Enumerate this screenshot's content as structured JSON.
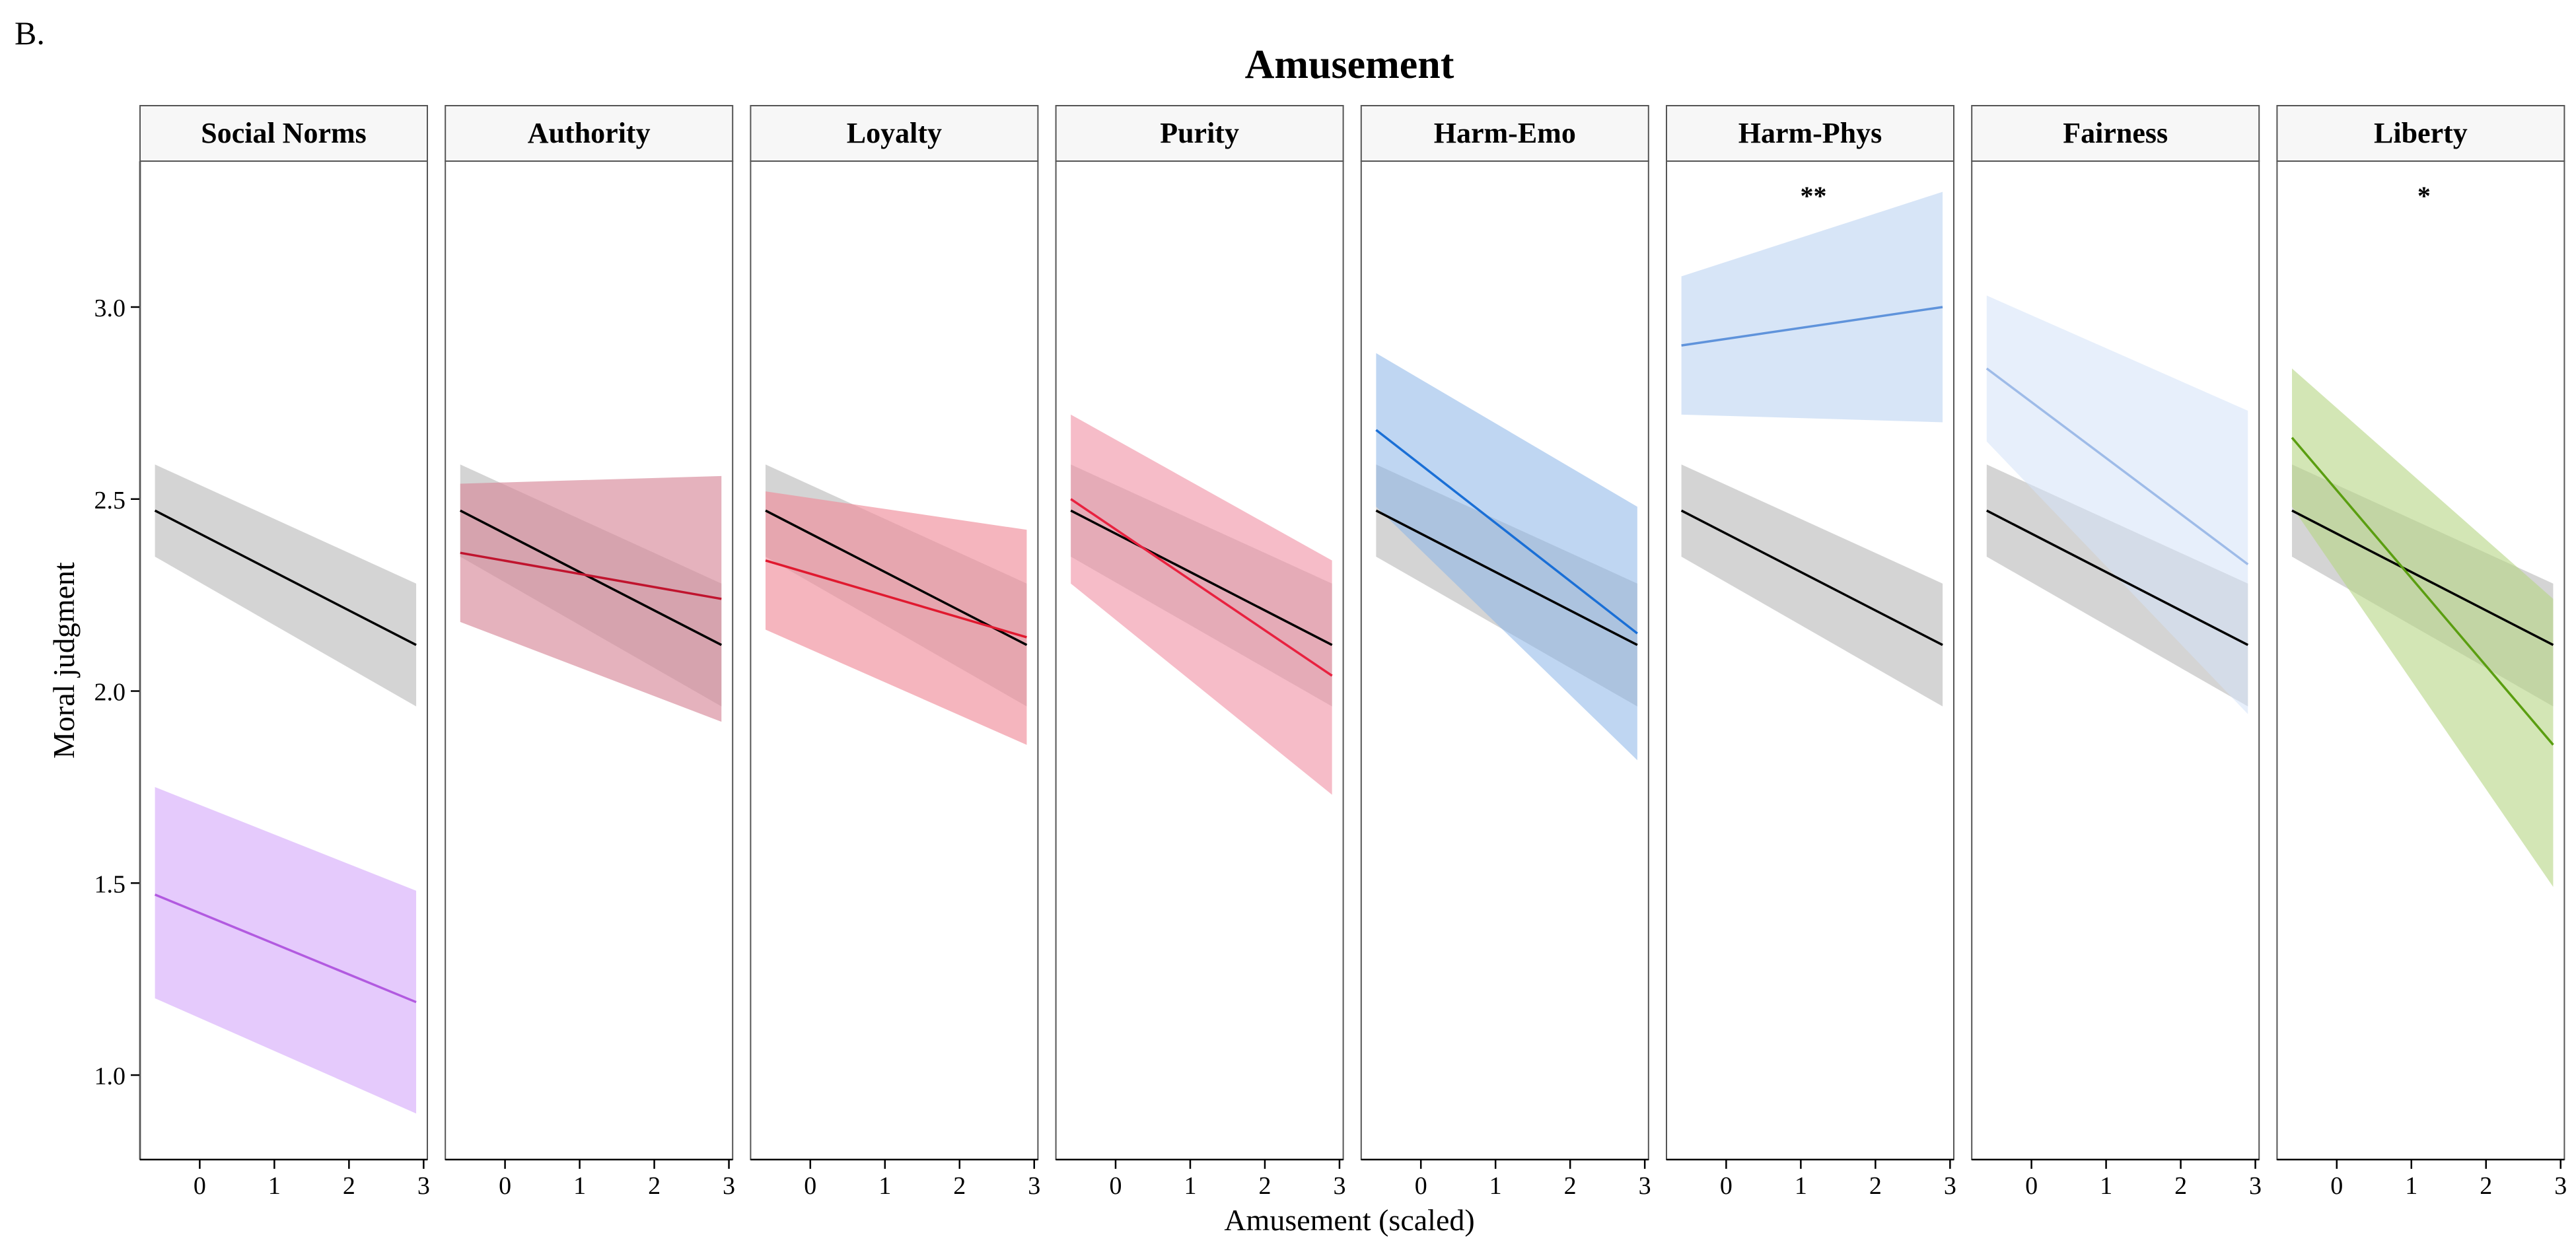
{
  "figure_label": "B.",
  "chart_data": {
    "type": "line",
    "title": "Amusement",
    "xlabel": "Amusement (scaled)",
    "ylabel": "Moral judgment",
    "xlim": [
      -0.8,
      3.05
    ],
    "ylim": [
      0.78,
      3.38
    ],
    "x_ticks": [
      0,
      1,
      2,
      3
    ],
    "y_ticks": [
      1.0,
      1.5,
      2.0,
      2.5,
      3.0
    ],
    "y_tick_labels": [
      "1.0",
      "1.5",
      "2.0",
      "2.5",
      "3.0"
    ],
    "x_range": [
      -0.6,
      2.9
    ],
    "baseline": {
      "color": "#000000",
      "band_color": "#bdbdbd",
      "line": [
        2.47,
        2.12
      ],
      "lower": [
        2.35,
        1.96
      ],
      "upper": [
        2.59,
        2.28
      ]
    },
    "panels": [
      {
        "name": "Social Norms",
        "annotation": "",
        "color": "#b25ae0",
        "band_color": "#dcb8fb",
        "line": [
          1.47,
          1.19
        ],
        "lower": [
          1.2,
          0.9
        ],
        "upper": [
          1.75,
          1.48
        ],
        "band_opacity": 0.75
      },
      {
        "name": "Authority",
        "annotation": "",
        "color": "#c0142e",
        "band_color": "#d7889a",
        "line": [
          2.36,
          2.24
        ],
        "lower": [
          2.18,
          1.92
        ],
        "upper": [
          2.54,
          2.56
        ],
        "band_opacity": 0.65
      },
      {
        "name": "Loyalty",
        "annotation": "",
        "color": "#e0192f",
        "band_color": "#ef8d9b",
        "line": [
          2.34,
          2.14
        ],
        "lower": [
          2.16,
          1.86
        ],
        "upper": [
          2.52,
          2.42
        ],
        "band_opacity": 0.65
      },
      {
        "name": "Purity",
        "annotation": "",
        "color": "#e8213f",
        "band_color": "#f08fa3",
        "line": [
          2.5,
          2.04
        ],
        "lower": [
          2.28,
          1.73
        ],
        "upper": [
          2.72,
          2.34
        ],
        "band_opacity": 0.6
      },
      {
        "name": "Harm-Emo",
        "annotation": "",
        "color": "#1a6fd6",
        "band_color": "#8bb5e8",
        "line": [
          2.68,
          2.15
        ],
        "lower": [
          2.48,
          1.82
        ],
        "upper": [
          2.88,
          2.48
        ],
        "band_opacity": 0.55
      },
      {
        "name": "Harm-Phys",
        "annotation": "**",
        "color": "#5f93db",
        "band_color": "#bcd3f1",
        "line": [
          2.9,
          3.0
        ],
        "lower": [
          2.72,
          2.7
        ],
        "upper": [
          3.08,
          3.3
        ],
        "band_opacity": 0.6
      },
      {
        "name": "Fairness",
        "annotation": "",
        "color": "#9ebbe8",
        "band_color": "#d3e1f7",
        "line": [
          2.84,
          2.33
        ],
        "lower": [
          2.65,
          1.94
        ],
        "upper": [
          3.03,
          2.73
        ],
        "band_opacity": 0.55
      },
      {
        "name": "Liberty",
        "annotation": "*",
        "color": "#5a9e10",
        "band_color": "#b5d683",
        "line": [
          2.66,
          1.86
        ],
        "lower": [
          2.48,
          1.49
        ],
        "upper": [
          2.84,
          2.24
        ],
        "band_opacity": 0.6
      }
    ]
  }
}
